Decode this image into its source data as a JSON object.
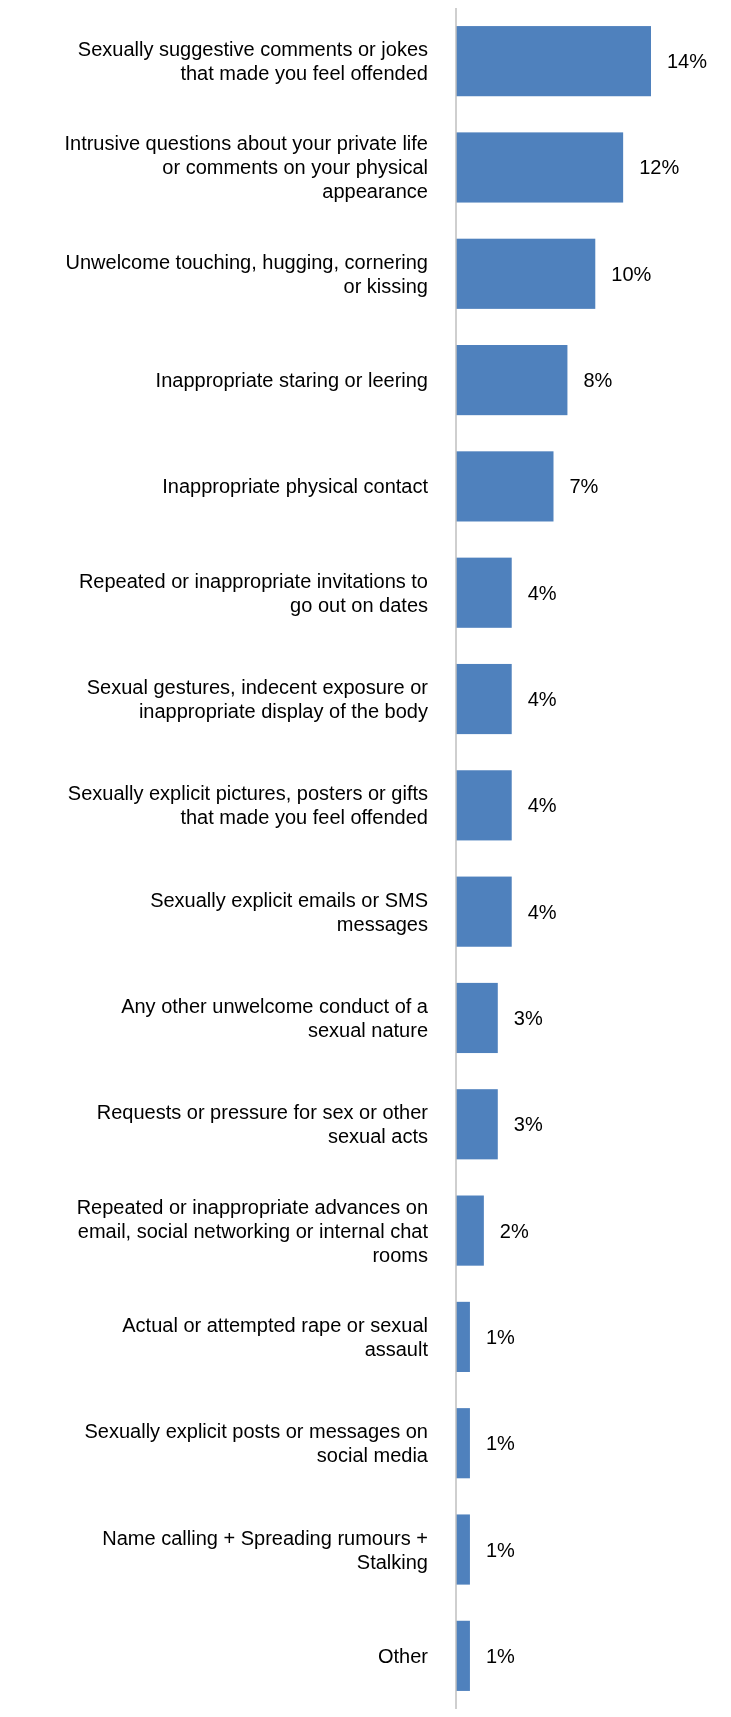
{
  "chart_data": {
    "type": "bar",
    "orientation": "horizontal",
    "color": "#4f81bd",
    "value_labels": [
      "14%",
      "12%",
      "10%",
      "8%",
      "7%",
      "4%",
      "4%",
      "4%",
      "4%",
      "3%",
      "3%",
      "2%",
      "1%",
      "1%",
      "1%",
      "1%"
    ],
    "categories": [
      "Sexually suggestive comments or jokes that made you feel offended",
      "Intrusive questions about your private life or comments on your physical appearance",
      "Unwelcome touching, hugging, cornering or kissing",
      "Inappropriate staring or leering",
      "Inappropriate physical contact",
      "Repeated or inappropriate invitations to go out on dates",
      "Sexual gestures, indecent exposure or inappropriate display of the body",
      "Sexually explicit pictures, posters or gifts that made you feel offended",
      "Sexually explicit emails or SMS messages",
      "Any other unwelcome conduct of a sexual nature",
      "Requests or pressure for sex or other sexual acts",
      "Repeated or inappropriate advances on email, social networking or internal chat rooms",
      "Actual or attempted rape or sexual assault",
      "Sexually explicit posts or messages on social media",
      "Name calling + Spreading rumours + Stalking",
      "Other"
    ],
    "values": [
      14,
      12,
      10,
      8,
      7,
      4,
      4,
      4,
      4,
      3,
      3,
      2,
      1,
      1,
      1,
      1
    ]
  }
}
